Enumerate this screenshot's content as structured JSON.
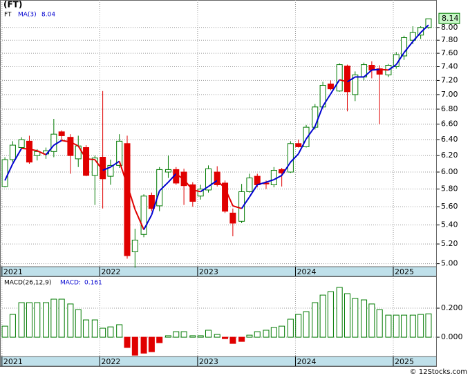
{
  "chart_data": [
    {
      "type": "candlestick",
      "title": "(FT)",
      "name": "FT",
      "log_scale": true,
      "grid": true,
      "up_color": "#007a00",
      "down_color": "#e00000",
      "x": [
        2021.03,
        2021.11,
        2021.2,
        2021.28,
        2021.36,
        2021.45,
        2021.53,
        2021.61,
        2021.7,
        2021.78,
        2021.86,
        2021.95,
        2022.03,
        2022.11,
        2022.2,
        2022.28,
        2022.36,
        2022.45,
        2022.53,
        2022.61,
        2022.7,
        2022.78,
        2022.86,
        2022.95,
        2023.03,
        2023.11,
        2023.2,
        2023.28,
        2023.36,
        2023.45,
        2023.53,
        2023.61,
        2023.7,
        2023.78,
        2023.86,
        2023.95,
        2024.03,
        2024.11,
        2024.2,
        2024.28,
        2024.36,
        2024.45,
        2024.53,
        2024.61,
        2024.7,
        2024.78,
        2024.86,
        2024.95,
        2025.03,
        2025.11,
        2025.2,
        2025.28,
        2025.36
      ],
      "open": [
        5.83,
        6.15,
        6.3,
        6.38,
        6.2,
        6.22,
        6.25,
        6.5,
        6.43,
        6.16,
        6.3,
        5.96,
        6.18,
        5.95,
        6.08,
        6.35,
        5.12,
        5.3,
        5.73,
        5.61,
        6.0,
        6.03,
        6.0,
        5.85,
        5.72,
        5.79,
        6.0,
        5.87,
        5.53,
        5.44,
        5.77,
        5.95,
        5.87,
        5.85,
        6.03,
        6.0,
        6.35,
        6.31,
        6.56,
        6.83,
        7.15,
        7.05,
        7.41,
        7.0,
        7.25,
        7.42,
        7.37,
        7.28,
        7.4,
        7.56,
        7.8,
        7.88,
        8.0
      ],
      "high": [
        6.18,
        6.38,
        6.43,
        6.45,
        6.28,
        6.3,
        6.67,
        6.52,
        6.47,
        6.45,
        6.33,
        6.2,
        7.05,
        6.15,
        6.47,
        6.45,
        5.36,
        5.74,
        5.76,
        6.06,
        6.2,
        6.06,
        6.04,
        5.88,
        5.85,
        6.08,
        6.07,
        5.9,
        5.58,
        5.86,
        5.98,
        5.98,
        5.9,
        6.06,
        6.05,
        6.38,
        6.4,
        6.59,
        6.87,
        7.18,
        7.2,
        7.45,
        7.43,
        7.33,
        7.46,
        7.48,
        7.42,
        7.44,
        7.62,
        7.87,
        8.02,
        8.02,
        8.13
      ],
      "low": [
        5.82,
        6.12,
        6.28,
        6.1,
        6.14,
        6.16,
        6.18,
        6.38,
        5.98,
        6.06,
        5.95,
        5.62,
        5.58,
        5.85,
        6.05,
        5.05,
        4.96,
        5.27,
        5.55,
        5.55,
        5.93,
        5.85,
        5.62,
        5.6,
        5.68,
        5.76,
        5.83,
        5.53,
        5.28,
        5.42,
        5.76,
        5.82,
        5.8,
        5.82,
        5.83,
        5.99,
        6.3,
        6.3,
        6.53,
        6.81,
        7.06,
        7.04,
        6.77,
        6.91,
        7.2,
        7.23,
        6.6,
        7.25,
        7.37,
        7.5,
        7.74,
        7.82,
        7.98
      ],
      "close": [
        6.15,
        6.33,
        6.4,
        6.12,
        6.25,
        6.26,
        6.47,
        6.45,
        6.2,
        6.32,
        5.96,
        6.17,
        5.92,
        6.08,
        6.38,
        5.08,
        5.24,
        5.72,
        5.58,
        6.03,
        6.03,
        5.87,
        5.84,
        5.66,
        5.8,
        6.04,
        5.85,
        5.55,
        5.42,
        5.77,
        5.93,
        5.85,
        5.86,
        6.02,
        5.99,
        6.35,
        6.31,
        6.56,
        6.83,
        7.13,
        7.08,
        7.43,
        7.04,
        7.28,
        7.43,
        7.35,
        7.29,
        7.42,
        7.58,
        7.84,
        7.92,
        8.0,
        8.14
      ],
      "ma": {
        "name": "MA(3)",
        "rise_color": "#0000d0",
        "fall_color": "#e00000",
        "values": [
          5.9,
          6.1,
          6.29,
          6.28,
          6.26,
          6.21,
          6.33,
          6.39,
          6.37,
          6.32,
          6.16,
          6.15,
          6.02,
          6.06,
          6.13,
          5.85,
          5.57,
          5.35,
          5.51,
          5.78,
          5.88,
          5.98,
          5.91,
          5.79,
          5.77,
          5.83,
          5.9,
          5.81,
          5.61,
          5.58,
          5.71,
          5.85,
          5.88,
          5.91,
          5.96,
          6.12,
          6.22,
          6.41,
          6.57,
          6.84,
          7.01,
          7.21,
          7.18,
          7.25,
          7.25,
          7.35,
          7.36,
          7.35,
          7.43,
          7.61,
          7.78,
          7.92,
          8.04
        ]
      },
      "xlim": [
        2020.98,
        2025.445
      ],
      "xticks": [
        2021,
        2022,
        2023,
        2024,
        2025
      ],
      "ylim": [
        4.97,
        8.45
      ],
      "yticks": [
        {
          "value": 5,
          "label": "5.00"
        },
        {
          "value": 5.2,
          "label": "5.20"
        },
        {
          "value": 5.4,
          "label": "5.40"
        },
        {
          "value": 5.6,
          "label": "5.60"
        },
        {
          "value": 5.8,
          "label": "5.80"
        },
        {
          "value": 6,
          "label": "6.00"
        },
        {
          "value": 6.2,
          "label": "6.20"
        },
        {
          "value": 6.4,
          "label": "6.40"
        },
        {
          "value": 6.6,
          "label": "6.60"
        },
        {
          "value": 6.8,
          "label": "6.80"
        },
        {
          "value": 7,
          "label": "7.00"
        },
        {
          "value": 7.2,
          "label": "7.20"
        },
        {
          "value": 7.4,
          "label": "7.40"
        },
        {
          "value": 7.6,
          "label": "7.60"
        },
        {
          "value": 7.8,
          "label": "7.80"
        },
        {
          "value": 8,
          "label": "8.00"
        }
      ]
    },
    {
      "type": "bar",
      "name": "MACD(26,12,9)",
      "legend_label": "MACD:",
      "grid": true,
      "up_color": "#007a00",
      "down_color": "#e00000",
      "x": [
        2021.03,
        2021.11,
        2021.2,
        2021.28,
        2021.36,
        2021.45,
        2021.53,
        2021.61,
        2021.7,
        2021.78,
        2021.86,
        2021.95,
        2022.03,
        2022.11,
        2022.2,
        2022.28,
        2022.36,
        2022.45,
        2022.53,
        2022.61,
        2022.7,
        2022.78,
        2022.86,
        2022.95,
        2023.03,
        2023.11,
        2023.2,
        2023.28,
        2023.36,
        2023.45,
        2023.53,
        2023.61,
        2023.7,
        2023.78,
        2023.86,
        2023.95,
        2024.03,
        2024.11,
        2024.2,
        2024.28,
        2024.36,
        2024.45,
        2024.53,
        2024.61,
        2024.7,
        2024.78,
        2024.86,
        2024.95,
        2025.03,
        2025.11,
        2025.2,
        2025.28,
        2025.36
      ],
      "values": [
        0.076,
        0.157,
        0.238,
        0.238,
        0.238,
        0.238,
        0.262,
        0.262,
        0.229,
        0.19,
        0.119,
        0.119,
        0.062,
        0.071,
        0.086,
        -0.071,
        -0.124,
        -0.11,
        -0.1,
        -0.038,
        0.01,
        0.038,
        0.038,
        0.01,
        0.01,
        0.048,
        0.019,
        -0.01,
        -0.043,
        -0.029,
        0.014,
        0.038,
        0.048,
        0.067,
        0.076,
        0.124,
        0.157,
        0.176,
        0.238,
        0.29,
        0.314,
        0.343,
        0.3,
        0.267,
        0.257,
        0.229,
        0.19,
        0.152,
        0.152,
        0.152,
        0.152,
        0.157,
        0.161
      ],
      "xlim": [
        2020.98,
        2025.445
      ],
      "xticks": [
        2021,
        2022,
        2023,
        2024,
        2025
      ],
      "ylim": [
        -0.133,
        0.419
      ],
      "yticks": [
        {
          "value": 0,
          "label": "0.000"
        },
        {
          "value": 0.2,
          "label": "0.200"
        }
      ]
    }
  ],
  "footer": "© 12Stocks.com"
}
